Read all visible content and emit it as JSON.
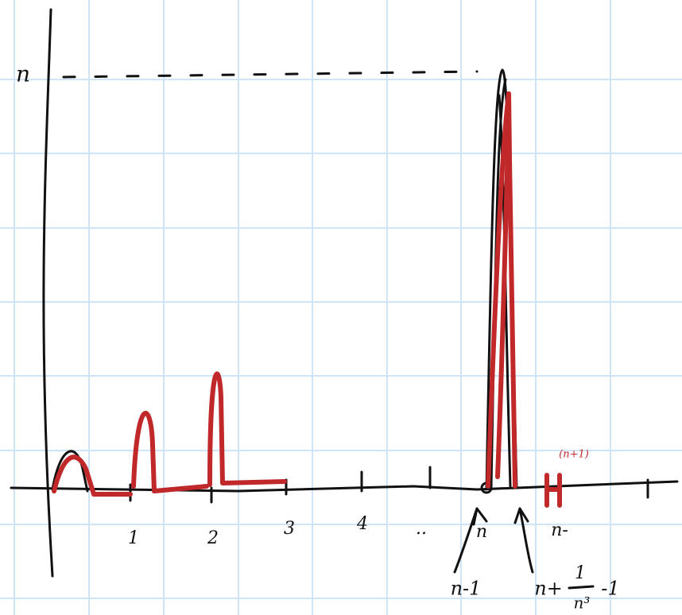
{
  "axis": {
    "y_label": "n"
  },
  "tick_labels": [
    "1",
    "2",
    "3",
    "4",
    "..",
    "n",
    "n-"
  ],
  "red_label": "(n+1)",
  "annotations": {
    "left": "n-1",
    "right": {
      "prefix": "n+",
      "numerator": "1",
      "denominator": "n³",
      "suffix": "-1"
    }
  }
}
